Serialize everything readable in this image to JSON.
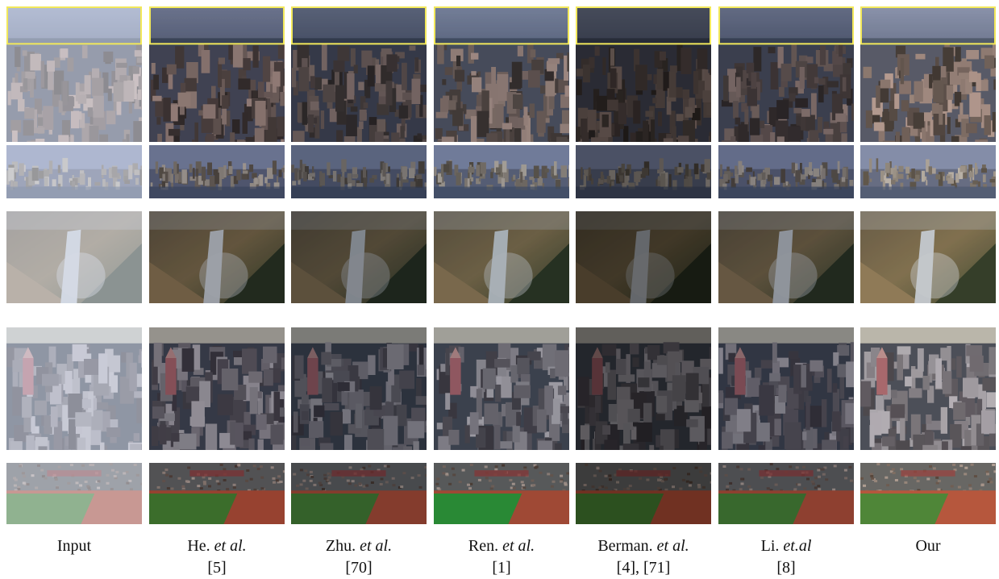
{
  "columns": [
    {
      "name": "Input",
      "etal": "",
      "ref": ""
    },
    {
      "name": "He.",
      "etal": "et al.",
      "ref": "[5]"
    },
    {
      "name": "Zhu.",
      "etal": "et al.",
      "ref": "[70]"
    },
    {
      "name": "Ren.",
      "etal": "et al.",
      "ref": "[1]"
    },
    {
      "name": "Berman.",
      "etal": "et al.",
      "ref": "[4], [71]"
    },
    {
      "name": "Li.",
      "etal": "et.al",
      "ref": "[8]"
    },
    {
      "name": "Our",
      "etal": "",
      "ref": ""
    }
  ],
  "rows": [
    {
      "scene": "city-aerial-with-highlight"
    },
    {
      "scene": "city-zoom-crop"
    },
    {
      "scene": "waterfall-canyon"
    },
    {
      "scene": "city-skyline"
    },
    {
      "scene": "stadium"
    }
  ],
  "colors": {
    "highlight_box": "#f2e85a",
    "background": "#ffffff"
  }
}
